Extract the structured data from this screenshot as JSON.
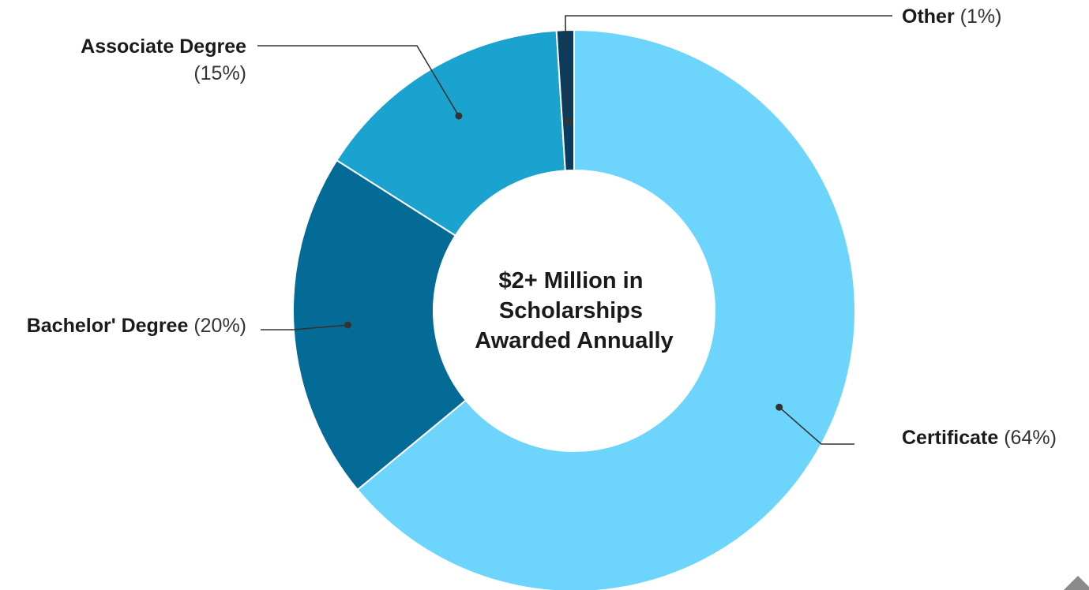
{
  "chart_data": {
    "type": "pie",
    "variant": "donut",
    "title": "",
    "center_label": [
      "$2+ Million in",
      "Scholarships",
      "Awarded Annually"
    ],
    "slices": [
      {
        "label": "Certificate",
        "value": 64,
        "display": "(64%)",
        "color": "#6dd5fb"
      },
      {
        "label": "Bachelor' Degree",
        "value": 20,
        "display": "(20%)",
        "color": "#046b97"
      },
      {
        "label": "Associate Degree",
        "value": 15,
        "display": "(15%)",
        "color": "#1ba3cf"
      },
      {
        "label": "Other",
        "value": 1,
        "display": "(1%)",
        "color": "#0b3c5d"
      }
    ],
    "legend": "none"
  }
}
